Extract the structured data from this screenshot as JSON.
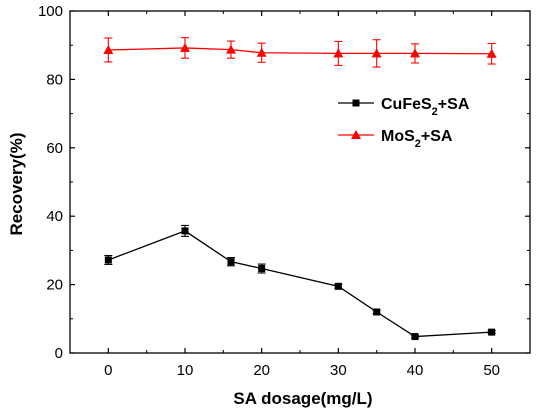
{
  "chart_data": {
    "type": "line",
    "xlabel": "SA dosage(mg/L)",
    "ylabel": "Recovery(%)",
    "xlim": [
      -5,
      55
    ],
    "ylim": [
      0,
      100
    ],
    "xticks": [
      0,
      10,
      20,
      30,
      40,
      50
    ],
    "yticks": [
      0,
      20,
      40,
      60,
      80,
      100
    ],
    "grid": false,
    "legend_position": "upper-right",
    "series": [
      {
        "name": "CuFeS2+SA",
        "legend_parts": [
          {
            "text": "CuFeS",
            "sub": false
          },
          {
            "text": "2",
            "sub": true
          },
          {
            "text": "+SA",
            "sub": false
          }
        ],
        "color": "#000000",
        "marker": "square",
        "x": [
          0,
          10,
          16,
          20,
          30,
          35,
          40,
          50
        ],
        "y": [
          27.2,
          35.7,
          26.7,
          24.7,
          19.5,
          12.0,
          4.8,
          6.1
        ],
        "error": [
          1.3,
          1.6,
          1.2,
          1.3,
          0.6,
          0.5,
          0.4,
          0.4
        ]
      },
      {
        "name": "MoS2+SA",
        "legend_parts": [
          {
            "text": "MoS",
            "sub": false
          },
          {
            "text": "2",
            "sub": true
          },
          {
            "text": "+SA",
            "sub": false
          }
        ],
        "color": "#ff0000",
        "marker": "triangle-up",
        "x": [
          0,
          10,
          16,
          20,
          30,
          35,
          40,
          50
        ],
        "y": [
          88.6,
          89.2,
          88.7,
          87.8,
          87.6,
          87.6,
          87.6,
          87.5
        ],
        "error": [
          3.5,
          3.0,
          2.5,
          2.8,
          3.5,
          4.0,
          2.8,
          3.0
        ]
      }
    ]
  }
}
